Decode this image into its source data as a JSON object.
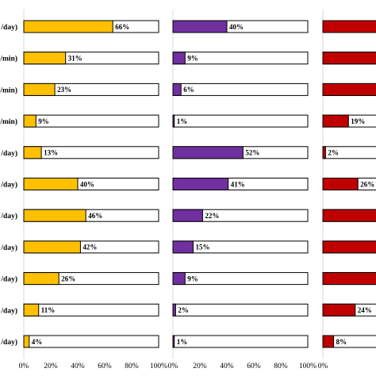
{
  "chart_data": {
    "type": "bar",
    "orientation": "horizontal",
    "stacked_with_remainder": true,
    "row_labels": [
      "/day)",
      "/min)",
      "/min)",
      "/min)",
      "/day)",
      "/day)",
      "/day)",
      "/day)",
      "/day)",
      "/day)",
      "/day)"
    ],
    "x_ticks": [
      "0%",
      "20%",
      "40%",
      "60%",
      "80%",
      "100%"
    ],
    "xlim": [
      0,
      100
    ],
    "grid": false,
    "panels": [
      {
        "color": "#FFC000",
        "values": [
          66,
          31,
          23,
          9,
          13,
          40,
          46,
          42,
          26,
          11,
          4
        ],
        "labels": [
          "66%",
          "31%",
          "23%",
          "9%",
          "13%",
          "40%",
          "46%",
          "42%",
          "26%",
          "11%",
          "4%"
        ],
        "tick_labels": [
          "0%",
          "20%",
          "40%",
          "60%",
          "80%",
          "100%"
        ]
      },
      {
        "color": "#7030A0",
        "values": [
          40,
          9,
          6,
          1,
          52,
          41,
          22,
          15,
          9,
          2,
          1
        ],
        "labels": [
          "40%",
          "9%",
          "6%",
          "1%",
          "52%",
          "41%",
          "22%",
          "15%",
          "9%",
          "2%",
          "1%"
        ],
        "tick_labels": [
          "0%",
          "20%",
          "40%",
          "60%",
          "80%",
          "100%"
        ]
      },
      {
        "color": "#C00000",
        "values": [
          100,
          100,
          100,
          19,
          2,
          26,
          100,
          100,
          100,
          24,
          8
        ],
        "labels": [
          "",
          "",
          "",
          "19%",
          "2%",
          "26%",
          "",
          "",
          "",
          "24%",
          "8%"
        ],
        "tick_labels": [
          "0%"
        ]
      }
    ]
  }
}
